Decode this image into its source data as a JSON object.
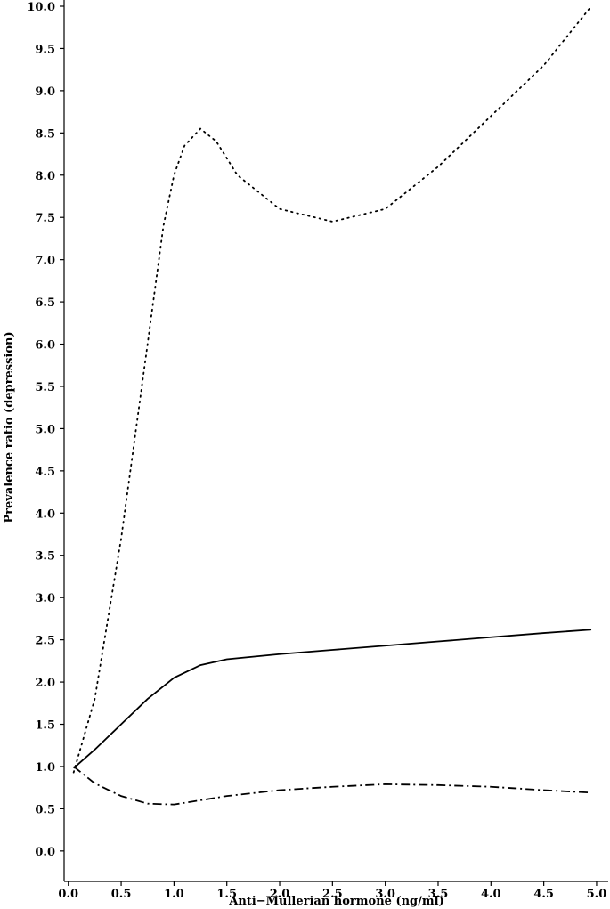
{
  "chart_data": {
    "type": "line",
    "x_label": "Anti−Mullerian hormone (ng/ml)",
    "y_label": "Prevalence ratio (depression)",
    "xlim": [
      -0.04,
      5.11
    ],
    "ylim": [
      -0.36,
      10.0
    ],
    "xticks": [
      {
        "value": 0,
        "label": "0.0"
      },
      0.5,
      {
        "value": 1,
        "label": "1.0"
      },
      1.5,
      {
        "value": 2,
        "label": "2.0"
      },
      2.5,
      {
        "value": 3,
        "label": "3.0"
      },
      3.5,
      {
        "value": 4,
        "label": "4.0"
      },
      4.5,
      {
        "value": 5,
        "label": "5.0"
      }
    ],
    "yticks": [
      {
        "value": 0,
        "label": "0.0"
      },
      0.5,
      {
        "value": 1,
        "label": "1.0"
      },
      1.5,
      {
        "value": 2,
        "label": "2.0"
      },
      2.5,
      {
        "value": 3,
        "label": "3.0"
      },
      3.5,
      {
        "value": 4,
        "label": "4.0"
      },
      4.5,
      {
        "value": 5,
        "label": "5.0"
      },
      5.5,
      {
        "value": 6,
        "label": "6.0"
      },
      6.5,
      {
        "value": 7,
        "label": "7.0"
      },
      7.5,
      {
        "value": 8,
        "label": "8.0"
      },
      8.5,
      {
        "value": 9,
        "label": "9.0"
      },
      9.5,
      {
        "value": 10,
        "label": "10.0"
      }
    ],
    "series": [
      {
        "color": "#000000",
        "dash": "solid",
        "x": [
          0.05,
          0.25,
          0.5,
          0.75,
          1.0,
          1.25,
          1.5,
          2.0,
          2.5,
          3.0,
          3.5,
          4.0,
          4.5,
          4.95
        ],
        "values": [
          0.98,
          1.2,
          1.5,
          1.8,
          2.05,
          2.2,
          2.27,
          2.33,
          2.38,
          2.43,
          2.48,
          2.53,
          2.58,
          2.62
        ]
      },
      {
        "color": "#000000",
        "dash": "dotted",
        "x": [
          0.05,
          0.25,
          0.5,
          0.75,
          0.9,
          1.0,
          1.1,
          1.25,
          1.4,
          1.6,
          2.0,
          2.5,
          3.0,
          3.5,
          4.0,
          4.5,
          4.95
        ],
        "values": [
          0.93,
          1.8,
          3.7,
          6.0,
          7.4,
          8.0,
          8.35,
          8.55,
          8.4,
          8.0,
          7.6,
          7.45,
          7.6,
          8.1,
          8.7,
          9.3,
          10.0
        ]
      },
      {
        "color": "#000000",
        "dash": "dashdot",
        "x": [
          0.05,
          0.25,
          0.5,
          0.75,
          1.0,
          1.25,
          1.5,
          2.0,
          2.5,
          3.0,
          3.5,
          4.0,
          4.5,
          4.95
        ],
        "values": [
          1.0,
          0.8,
          0.65,
          0.56,
          0.55,
          0.6,
          0.65,
          0.72,
          0.76,
          0.79,
          0.78,
          0.76,
          0.72,
          0.69
        ]
      }
    ]
  }
}
